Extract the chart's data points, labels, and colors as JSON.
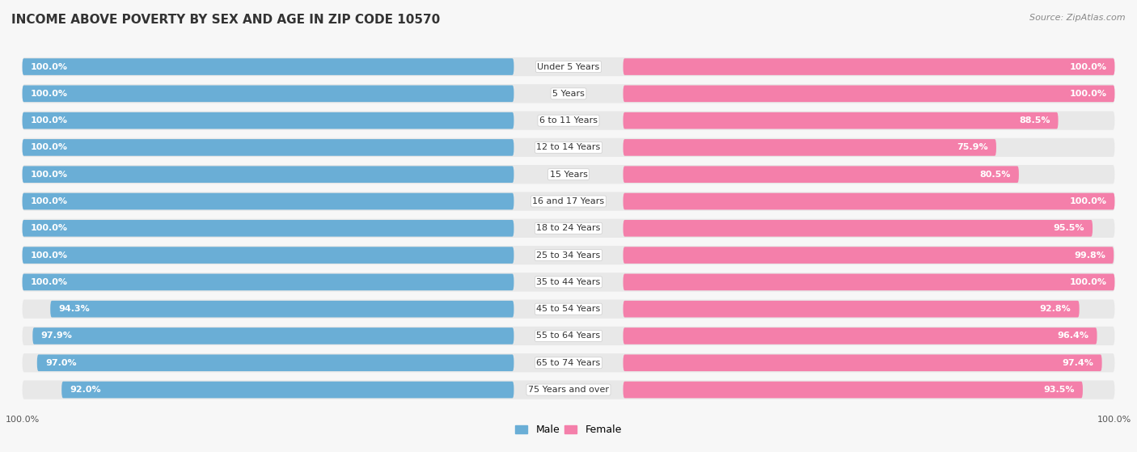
{
  "title": "INCOME ABOVE POVERTY BY SEX AND AGE IN ZIP CODE 10570",
  "source": "Source: ZipAtlas.com",
  "categories": [
    "Under 5 Years",
    "5 Years",
    "6 to 11 Years",
    "12 to 14 Years",
    "15 Years",
    "16 and 17 Years",
    "18 to 24 Years",
    "25 to 34 Years",
    "35 to 44 Years",
    "45 to 54 Years",
    "55 to 64 Years",
    "65 to 74 Years",
    "75 Years and over"
  ],
  "male_values": [
    100.0,
    100.0,
    100.0,
    100.0,
    100.0,
    100.0,
    100.0,
    100.0,
    100.0,
    94.3,
    97.9,
    97.0,
    92.0
  ],
  "female_values": [
    100.0,
    100.0,
    88.5,
    75.9,
    80.5,
    100.0,
    95.5,
    99.8,
    100.0,
    92.8,
    96.4,
    97.4,
    93.5
  ],
  "male_color": "#6aaed6",
  "female_color": "#f47faa",
  "row_bg_color": "#e8e8e8",
  "fig_bg_color": "#f7f7f7",
  "title_fontsize": 11,
  "label_fontsize": 8,
  "tick_fontsize": 8,
  "legend_fontsize": 9,
  "value_fontsize": 8
}
